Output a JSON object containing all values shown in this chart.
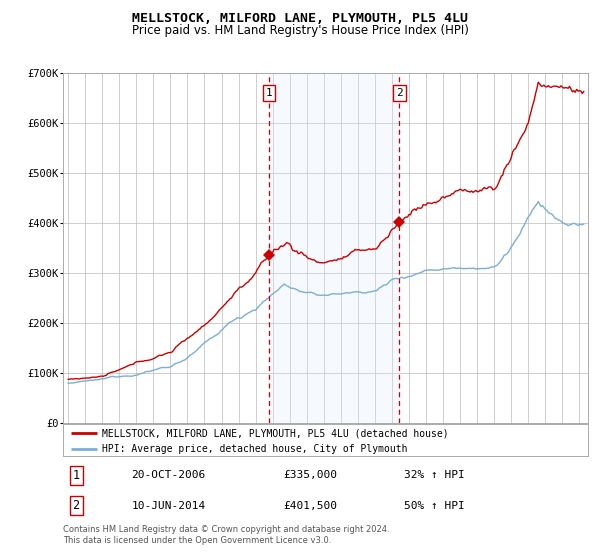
{
  "title": "MELLSTOCK, MILFORD LANE, PLYMOUTH, PL5 4LU",
  "subtitle": "Price paid vs. HM Land Registry's House Price Index (HPI)",
  "legend_line1": "MELLSTOCK, MILFORD LANE, PLYMOUTH, PL5 4LU (detached house)",
  "legend_line2": "HPI: Average price, detached house, City of Plymouth",
  "red_color": "#cc0000",
  "blue_color": "#7bafd4",
  "shade_color": "#ddeeff",
  "annotation1_date": "20-OCT-2006",
  "annotation1_price": "£335,000",
  "annotation1_hpi": "32% ↑ HPI",
  "annotation2_date": "10-JUN-2014",
  "annotation2_price": "£401,500",
  "annotation2_hpi": "50% ↑ HPI",
  "footer": "Contains HM Land Registry data © Crown copyright and database right 2024.\nThis data is licensed under the Open Government Licence v3.0.",
  "ylim": [
    0,
    700000
  ],
  "yticks": [
    0,
    100000,
    200000,
    300000,
    400000,
    500000,
    600000,
    700000
  ],
  "ytick_labels": [
    "£0",
    "£100K",
    "£200K",
    "£300K",
    "£400K",
    "£500K",
    "£600K",
    "£700K"
  ],
  "event1_x": 2006.8,
  "event2_x": 2014.44,
  "event1_y": 335000,
  "event2_y": 401500,
  "shade_x1": 2006.8,
  "shade_x2": 2014.44,
  "xlim_left": 1994.7,
  "xlim_right": 2025.5
}
